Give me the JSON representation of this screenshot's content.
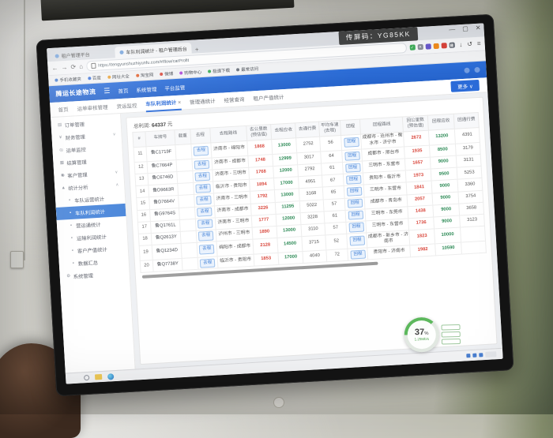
{
  "cast": {
    "chip_label": "传屏码：",
    "chip_code": "YG85KK",
    "percent": "37",
    "percent_unit": "%",
    "speed": "1.25Mb/s"
  },
  "browser": {
    "tabs": [
      {
        "label": "租户管理平台",
        "active": false
      },
      {
        "label": "车队利润统计 - 租户管理后台",
        "active": true
      }
    ],
    "new_tab": "+",
    "window_controls": {
      "minimize": "—",
      "maximize": "▢",
      "close": "✕"
    },
    "nav_icons": {
      "back": "←",
      "forward": "→",
      "refresh": "⟳",
      "home": "⌂"
    },
    "url": "https://tengyunshuzhiyunfu.com/#/flow/carProfit",
    "extensions": [
      {
        "name": "extension-check",
        "color": "#3fae5a",
        "glyph": "✓"
      },
      {
        "name": "extension-x",
        "color": "#8a8f99",
        "glyph": "✕"
      },
      {
        "name": "extension-purple",
        "color": "#6a5acd",
        "glyph": ""
      },
      {
        "name": "extension-orange",
        "color": "#f08c1e",
        "glyph": ""
      },
      {
        "name": "extension-red",
        "color": "#d9433b",
        "glyph": ""
      },
      {
        "name": "apps-grid",
        "color": "#5f6570",
        "glyph": "▦"
      }
    ],
    "toolbar_icons": {
      "download": "↓",
      "history": "↺",
      "menu": "≡"
    },
    "bookmarks": [
      {
        "label": "手机收藏夹",
        "color": "#4a7fd0"
      },
      {
        "label": "百度",
        "color": "#3f74d8"
      },
      {
        "label": "网址大全",
        "color": "#e8a33b"
      },
      {
        "label": "淘宝网",
        "color": "#e06432"
      },
      {
        "label": "微博",
        "color": "#d94f43"
      },
      {
        "label": "购物中心",
        "color": "#b04fd9"
      },
      {
        "label": "极速下载",
        "color": "#3fae5a"
      },
      {
        "label": "最常访问",
        "color": "#6f7680"
      }
    ]
  },
  "app": {
    "logo": "腾运长途物流",
    "hamburger": "☰",
    "nav": [
      "首页",
      "系统管理",
      "平台监管"
    ],
    "more_button": "更多 ∨",
    "page_tabs": [
      {
        "label": "首页",
        "active": false
      },
      {
        "label": "运单审核管理",
        "active": false
      },
      {
        "label": "货运监控",
        "active": false
      },
      {
        "label": "车队利润统计",
        "active": true,
        "closable": true
      },
      {
        "label": "管理通统计",
        "active": false
      },
      {
        "label": "经营查询",
        "active": false
      },
      {
        "label": "租户产值统计",
        "active": false
      }
    ],
    "sidebar": [
      {
        "label": "订单管理",
        "icon": "order-icon",
        "glyph": "▤"
      },
      {
        "label": "财务管理",
        "icon": "finance-icon",
        "glyph": "¥",
        "caret": "∨"
      },
      {
        "label": "运单监控",
        "icon": "monitor-icon",
        "glyph": "◎"
      },
      {
        "label": "结算管理",
        "icon": "settle-icon",
        "glyph": "▦"
      },
      {
        "label": "客户管理",
        "icon": "customer-icon",
        "glyph": "◉",
        "caret": "∨"
      },
      {
        "label": "统计分析",
        "icon": "stats-icon",
        "glyph": "▲",
        "caret": "∧"
      },
      {
        "label": "车队运营统计",
        "icon": "fleet-ops-icon",
        "glyph": "▪",
        "child": true
      },
      {
        "label": "车队利润统计",
        "icon": "fleet-profit-icon",
        "glyph": "▪",
        "child": true,
        "active": true
      },
      {
        "label": "营运通统计",
        "icon": "ops-icon",
        "glyph": "▪",
        "child": true
      },
      {
        "label": "运输利润统计",
        "icon": "transport-icon",
        "glyph": "▪",
        "child": true
      },
      {
        "label": "客户产值统计",
        "icon": "customer-output-icon",
        "glyph": "▪",
        "child": true
      },
      {
        "label": "数据汇总",
        "icon": "summary-icon",
        "glyph": "▪",
        "child": true
      },
      {
        "label": "系统管理",
        "icon": "gear-icon",
        "glyph": "⚙"
      }
    ]
  },
  "table": {
    "total_label": "总利润:",
    "total_value": "64337",
    "total_unit": "元",
    "out_button_label": "去程",
    "ret_button_label": "回程",
    "headers": [
      "#",
      "车牌号",
      "载重",
      "去程",
      "去程路线",
      "去公里数 (预估值)",
      "去程应收",
      "去通行费",
      "平均车速 (去程)",
      "回程",
      "回程路线",
      "回公里数 (预估值)",
      "回程应收",
      "回通行费"
    ],
    "col_widths": [
      "3.2%",
      "8.5%",
      "4%",
      "5.5%",
      "10.5%",
      "7%",
      "7%",
      "6.5%",
      "6%",
      "5.5%",
      "12.5%",
      "7%",
      "7.5%",
      "6.8%"
    ],
    "rows": [
      {
        "no": "11",
        "plate": "鲁C1719F",
        "load": "",
        "out_route": "济南市 - 绵阳市",
        "out_km": "1868",
        "out_recv": "13000",
        "out_toll": "2752",
        "speed": "56",
        "ret_route": "成都市 - 沧州市 - 衡水市 - 济宁市",
        "ret_km": "2672",
        "ret_recv": "13200",
        "ret_toll": "4391"
      },
      {
        "no": "12",
        "plate": "鲁C7664P",
        "load": "",
        "out_route": "济南市 - 成都市",
        "out_km": "1748",
        "out_recv": "12999",
        "out_toll": "3017",
        "speed": "64",
        "ret_route": "成都市 - 邢台市",
        "ret_km": "1935",
        "ret_recv": "8500",
        "ret_toll": "3179"
      },
      {
        "no": "13",
        "plate": "鲁C6746D",
        "load": "",
        "out_route": "济南市 - 三明市",
        "out_km": "1768",
        "out_recv": "12000",
        "out_toll": "2792",
        "speed": "61",
        "ret_route": "三明市 - 东营市",
        "ret_km": "1657",
        "ret_recv": "9000",
        "ret_toll": "3131"
      },
      {
        "no": "14",
        "plate": "鲁D9663R",
        "load": "",
        "out_route": "临沂市 - 贵阳市",
        "out_km": "1894",
        "out_recv": "17000",
        "out_toll": "4951",
        "speed": "67",
        "ret_route": "贵阳市 - 临沂市",
        "ret_km": "1973",
        "ret_recv": "9500",
        "ret_toll": "5253"
      },
      {
        "no": "15",
        "plate": "鲁D7664V",
        "load": "",
        "out_route": "济南市 - 三明市",
        "out_km": "1792",
        "out_recv": "13000",
        "out_toll": "3168",
        "speed": "65",
        "ret_route": "三明市 - 东营市",
        "ret_km": "1841",
        "ret_recv": "9000",
        "ret_toll": "3360"
      },
      {
        "no": "16",
        "plate": "鲁G9764S",
        "load": "",
        "out_route": "济南市 - 成都市",
        "out_km": "3226",
        "out_recv": "11295",
        "out_toll": "5022",
        "speed": "57",
        "ret_route": "成都市 - 青岛市",
        "ret_km": "2057",
        "ret_recv": "9000",
        "ret_toll": "3754"
      },
      {
        "no": "17",
        "plate": "鲁Q1761L",
        "load": "",
        "out_route": "济南市 - 三明市",
        "out_km": "1777",
        "out_recv": "12000",
        "out_toll": "3228",
        "speed": "61",
        "ret_route": "三明市 - 东莞市",
        "ret_km": "1438",
        "ret_recv": "9000",
        "ret_toll": "3658"
      },
      {
        "no": "18",
        "plate": "鲁Q2613Y",
        "load": "",
        "out_route": "泸州市 - 三明市",
        "out_km": "1890",
        "out_recv": "13000",
        "out_toll": "3110",
        "speed": "57",
        "ret_route": "三明市 - 东营市",
        "ret_km": "1736",
        "ret_recv": "9000",
        "ret_toll": "3123"
      },
      {
        "no": "19",
        "plate": "鲁Q1234D",
        "load": "",
        "out_route": "绵阳市 - 成都市",
        "out_km": "2128",
        "out_recv": "14500",
        "out_toll": "3715",
        "speed": "52",
        "ret_route": "成都市 - 新乡市 - 济南市",
        "ret_km": "1823",
        "ret_recv": "10000",
        "ret_toll": ""
      },
      {
        "no": "20",
        "plate": "鲁Q7738Y",
        "load": "",
        "out_route": "临沂市 - 贵阳市",
        "out_km": "1853",
        "out_recv": "17000",
        "out_toll": "4040",
        "speed": "72",
        "ret_route": "贵阳市 - 济南市",
        "ret_km": "1982",
        "ret_recv": "10590",
        "ret_toll": ""
      }
    ]
  },
  "taskbar": {
    "tray_count": 3
  }
}
